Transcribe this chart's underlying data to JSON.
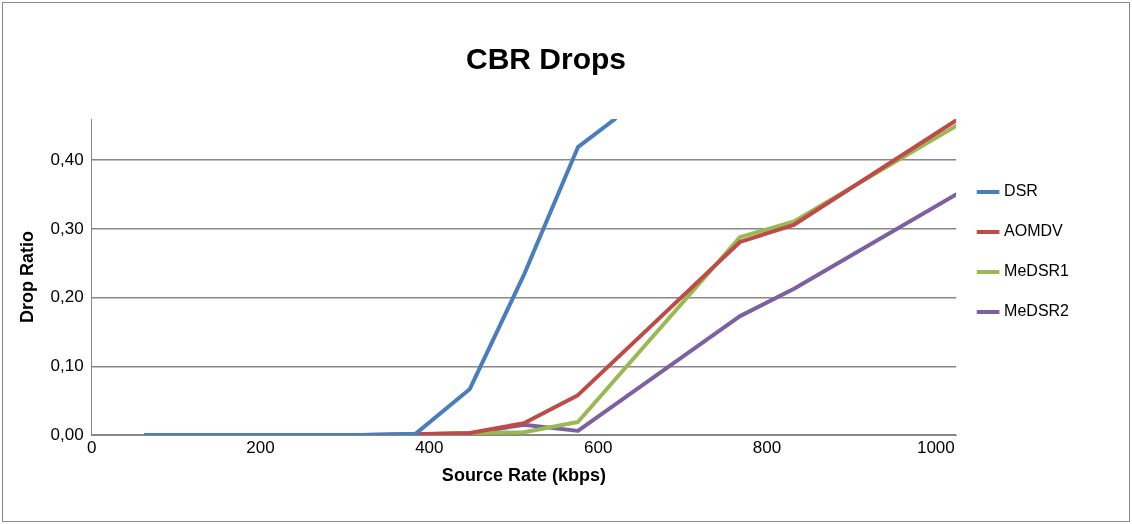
{
  "chart_data": {
    "type": "line",
    "title": "CBR Drops",
    "xlabel": "Source Rate (kbps)",
    "ylabel": "Drop Ratio",
    "x": [
      64,
      128,
      192,
      256,
      320,
      384,
      448,
      512,
      576,
      768,
      832,
      1024
    ],
    "series": [
      {
        "name": "DSR",
        "color": "#4a7ebb",
        "x": [
          64,
          128,
          192,
          256,
          320,
          384,
          448,
          512,
          576,
          620
        ],
        "values": [
          0,
          0,
          0,
          0,
          0,
          0.002,
          0.067,
          0.233,
          0.419,
          0.46
        ]
      },
      {
        "name": "AOMDV",
        "color": "#be4b48",
        "values": [
          null,
          null,
          null,
          null,
          null,
          0.001,
          0.003,
          0.017,
          0.058,
          0.281,
          0.306,
          0.458
        ]
      },
      {
        "name": "MeDSR1",
        "color": "#98b954",
        "values": [
          null,
          null,
          null,
          null,
          null,
          0.001,
          0.003,
          0.004,
          0.019,
          0.288,
          0.311,
          0.45
        ]
      },
      {
        "name": "MeDSR2",
        "color": "#7d60a0",
        "values": [
          0,
          0,
          0,
          0,
          0,
          0.001,
          0.002,
          0.015,
          0.006,
          0.173,
          0.213,
          0.35
        ]
      }
    ],
    "xlim": [
      0,
      1024
    ],
    "xticks": [
      0,
      200,
      400,
      600,
      800,
      1000
    ],
    "ylim": [
      0,
      0.46
    ],
    "yticks": [
      {
        "value": 0,
        "label": "0,00"
      },
      {
        "value": 0.1,
        "label": "0,10"
      },
      {
        "value": 0.2,
        "label": "0,20"
      },
      {
        "value": 0.3,
        "label": "0,30"
      },
      {
        "value": 0.4,
        "label": "0,40"
      }
    ],
    "grid": "y",
    "legend": "right",
    "marker": "none",
    "line_style": "solid"
  }
}
